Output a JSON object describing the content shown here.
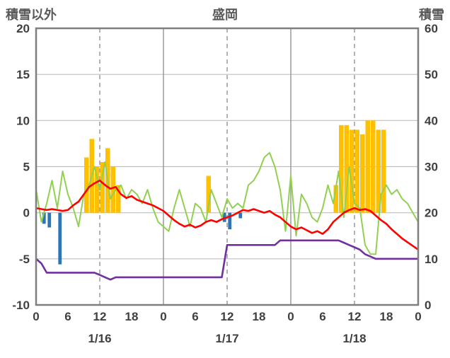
{
  "chart_data": {
    "type": "combo-bar-line",
    "title": "盛岡",
    "left_axis": {
      "label": "積雪以外",
      "min": -10,
      "max": 20,
      "tick_step": 5,
      "ticks": [
        "20",
        "15",
        "10",
        "5",
        "0",
        "-5",
        "-10"
      ]
    },
    "right_axis": {
      "label": "積雪",
      "min": 0,
      "max": 60,
      "tick_step": 10,
      "ticks": [
        "60",
        "50",
        "40",
        "30",
        "20",
        "10",
        "0"
      ]
    },
    "x_axis": {
      "total_hours": 72,
      "hour_tick_labels": [
        "0",
        "6",
        "12",
        "18",
        "0",
        "6",
        "12",
        "18",
        "0",
        "6",
        "12",
        "18",
        "0"
      ],
      "day_labels": [
        "1/16",
        "1/17",
        "1/18"
      ],
      "solid_gridline_hours": [
        24,
        48
      ],
      "dashed_gridline_hours": [
        12,
        36,
        60
      ]
    },
    "colors": {
      "orange_bar": "#FFC000",
      "blue_bar": "#2E75B6",
      "red_line": "#FF0000",
      "green_line": "#92D050",
      "purple_line": "#7030A0",
      "gridline": "#BFBFBF",
      "day_line": "#9A9A9A",
      "border": "#7F7F7F",
      "tick_text": "#404040",
      "title_text": "#595959"
    },
    "series": {
      "orange_bars": {
        "axis": "left",
        "bars": [
          [
            9,
            6
          ],
          [
            10,
            8
          ],
          [
            11,
            5
          ],
          [
            12,
            5.5
          ],
          [
            13,
            7
          ],
          [
            14,
            5
          ],
          [
            15,
            3
          ],
          [
            32,
            4
          ],
          [
            56,
            3
          ],
          [
            57,
            9.5
          ],
          [
            58,
            9.5
          ],
          [
            59,
            9
          ],
          [
            60,
            9
          ],
          [
            61,
            8.5
          ],
          [
            62,
            10
          ],
          [
            63,
            10
          ],
          [
            64,
            9
          ],
          [
            65,
            9
          ]
        ]
      },
      "blue_bars": {
        "axis": "left",
        "bars": [
          [
            1,
            -1.2
          ],
          [
            2,
            -1.6
          ],
          [
            4,
            -5.6
          ],
          [
            35,
            -1.0
          ],
          [
            36,
            -1.8
          ],
          [
            38,
            -0.6
          ]
        ]
      },
      "green_line": {
        "axis": "left",
        "values": [
          2.5,
          -1.0,
          1.0,
          3.5,
          0.5,
          4.5,
          2.0,
          0.5,
          -1.5,
          2.0,
          3.0,
          5.0,
          2.5,
          5.5,
          1.5,
          2.5,
          3.0,
          1.5,
          2.5,
          2.0,
          1.0,
          2.5,
          0.5,
          -1.0,
          -1.5,
          -2.0,
          0.5,
          2.5,
          0.5,
          -1.5,
          1.0,
          0.5,
          -1.0,
          2.5,
          1.0,
          -0.5,
          1.5,
          0.5,
          1.0,
          0.5,
          3.0,
          3.5,
          4.5,
          6.0,
          6.5,
          5.0,
          2.5,
          -2.0,
          4.0,
          -2.5,
          2.0,
          1.0,
          -0.5,
          -1.0,
          0.5,
          3.0,
          1.0,
          4.5,
          -0.5,
          5.0,
          1.0,
          0.5,
          -3.5,
          -4.5,
          -4.5,
          2.0,
          3.0,
          2.0,
          2.5,
          1.5,
          1.0,
          0.0,
          -1.0
        ]
      },
      "red_line": {
        "axis": "left",
        "values": [
          0.5,
          0.4,
          0.3,
          0.4,
          0.3,
          0.2,
          0.3,
          0.8,
          1.2,
          2.0,
          2.8,
          3.2,
          3.5,
          3.0,
          2.6,
          2.8,
          2.0,
          1.6,
          1.8,
          1.4,
          1.2,
          1.0,
          0.8,
          0.5,
          0.2,
          -0.3,
          -0.8,
          -1.2,
          -1.5,
          -1.3,
          -1.6,
          -1.4,
          -1.0,
          -0.8,
          -1.0,
          -0.7,
          -0.5,
          -0.3,
          0.0,
          0.3,
          0.2,
          0.4,
          0.2,
          0.0,
          0.2,
          -0.2,
          -0.5,
          -1.0,
          -1.5,
          -1.8,
          -1.6,
          -1.9,
          -2.2,
          -2.0,
          -2.3,
          -1.8,
          -1.0,
          -0.5,
          0.0,
          0.3,
          0.5,
          0.3,
          0.4,
          0.2,
          -0.3,
          -0.8,
          -1.2,
          -1.8,
          -2.3,
          -2.8,
          -3.2,
          -3.6,
          -4.0
        ]
      },
      "purple_line": {
        "axis": "right",
        "values": [
          10,
          9,
          7,
          7,
          7,
          7,
          7,
          7,
          7,
          7,
          7,
          7,
          6.5,
          6,
          5.5,
          6,
          6,
          6,
          6,
          6,
          6,
          6,
          6,
          6,
          6,
          6,
          6,
          6,
          6,
          6,
          6,
          6,
          6,
          6,
          6,
          6,
          13,
          13,
          13,
          13,
          13,
          13,
          13,
          13,
          13,
          13,
          14,
          14,
          14,
          14,
          14,
          14,
          14,
          14,
          14,
          14,
          14,
          14,
          13.5,
          13,
          12.5,
          12,
          11,
          10.5,
          10,
          10,
          10,
          10,
          10,
          10,
          10,
          10,
          10
        ]
      }
    }
  }
}
